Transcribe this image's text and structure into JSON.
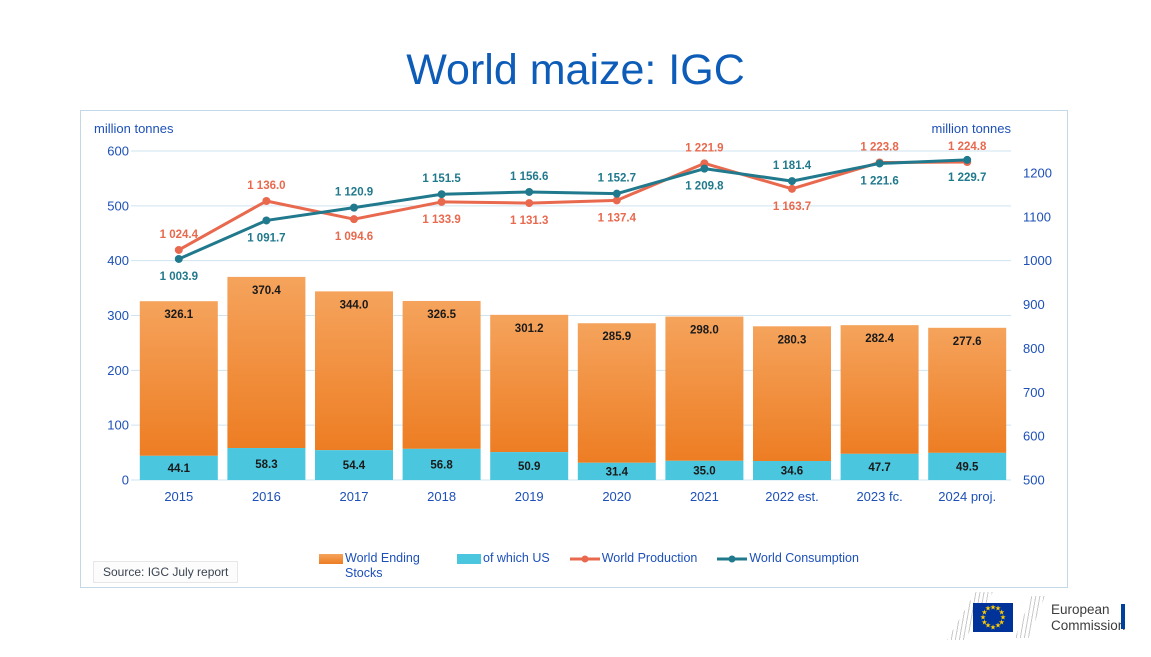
{
  "title": "World maize: IGC",
  "source": "Source: IGC July report",
  "logo": {
    "line1": "European",
    "line2": "Commission"
  },
  "legend": {
    "ending_stocks": "World Ending Stocks",
    "us": "of which US",
    "production": "World Production",
    "consumption": "World Consumption"
  },
  "colors": {
    "title_blue": "#0d5cb8",
    "axis_text": "#1d50b8",
    "grid": "#cfe4f0",
    "box_border": "#c3d9e8",
    "bar_top": "#f5a35c",
    "bar_bottom": "#ed7d23",
    "us_cyan": "#4ac6df",
    "production_red": "#e8694e",
    "consumption_teal": "#20798c",
    "data_label": "#1a1a1a",
    "eu_flag_blue": "#003399",
    "eu_star_yellow": "#ffcc00"
  },
  "chart_data": {
    "type": "bar+line combo",
    "title": "World maize: IGC",
    "categories": [
      "2015",
      "2016",
      "2017",
      "2018",
      "2019",
      "2020",
      "2021",
      "2022 est.",
      "2023 fc.",
      "2024 proj."
    ],
    "left_axis": {
      "label": "million tonnes",
      "min": 0,
      "max": 600,
      "ticks": [
        0,
        100,
        200,
        300,
        400,
        500,
        600
      ]
    },
    "right_axis": {
      "label": "million tonnes",
      "min": 500,
      "max": 1250,
      "ticks": [
        500,
        600,
        700,
        800,
        900,
        1000,
        1100,
        1200
      ]
    },
    "grid": "horizontal, light blue, left-axis ticks",
    "legend_position": "bottom",
    "series": [
      {
        "name": "World Ending Stocks",
        "type": "bar",
        "axis": "left",
        "color": "#ed7d23",
        "values": [
          326.1,
          370.4,
          344.0,
          326.5,
          301.2,
          285.9,
          298.0,
          280.3,
          282.4,
          277.6
        ],
        "labels": [
          "326.1",
          "370.4",
          "344.0",
          "326.5",
          "301.2",
          "285.9",
          "298.0",
          "280.3",
          "282.4",
          "277.6"
        ]
      },
      {
        "name": "of which US",
        "type": "bar",
        "axis": "left",
        "color": "#4ac6df",
        "values": [
          44.1,
          58.3,
          54.4,
          56.8,
          50.9,
          31.4,
          35.0,
          34.6,
          47.7,
          49.5
        ],
        "labels": [
          "44.1",
          "58.3",
          "54.4",
          "56.8",
          "50.9",
          "31.4",
          "35.0",
          "34.6",
          "47.7",
          "49.5"
        ]
      },
      {
        "name": "World Production",
        "type": "line",
        "axis": "right",
        "color": "#e8694e",
        "values": [
          1024.4,
          1136.0,
          1094.6,
          1133.9,
          1131.3,
          1137.4,
          1221.9,
          1163.7,
          1223.8,
          1224.8
        ],
        "labels": [
          "1 024.4",
          "1 136.0",
          "1 094.6",
          "1 133.9",
          "1 131.3",
          "1 137.4",
          "1 221.9",
          "1 163.7",
          "1 223.8",
          "1 224.8"
        ],
        "label_pos": [
          "above",
          "above",
          "below",
          "below",
          "below",
          "below",
          "above",
          "below",
          "above",
          "above"
        ]
      },
      {
        "name": "World Consumption",
        "type": "line",
        "axis": "right",
        "color": "#20798c",
        "values": [
          1003.9,
          1091.7,
          1120.9,
          1151.5,
          1156.6,
          1152.7,
          1209.8,
          1181.4,
          1221.6,
          1229.7
        ],
        "labels": [
          "1 003.9",
          "1 091.7",
          "1 120.9",
          "1 151.5",
          "1 156.6",
          "1 152.7",
          "1 209.8",
          "1 181.4",
          "1 221.6",
          "1 229.7"
        ],
        "label_pos": [
          "below",
          "below",
          "above",
          "above",
          "above",
          "above",
          "below",
          "above",
          "below",
          "below"
        ]
      }
    ]
  }
}
